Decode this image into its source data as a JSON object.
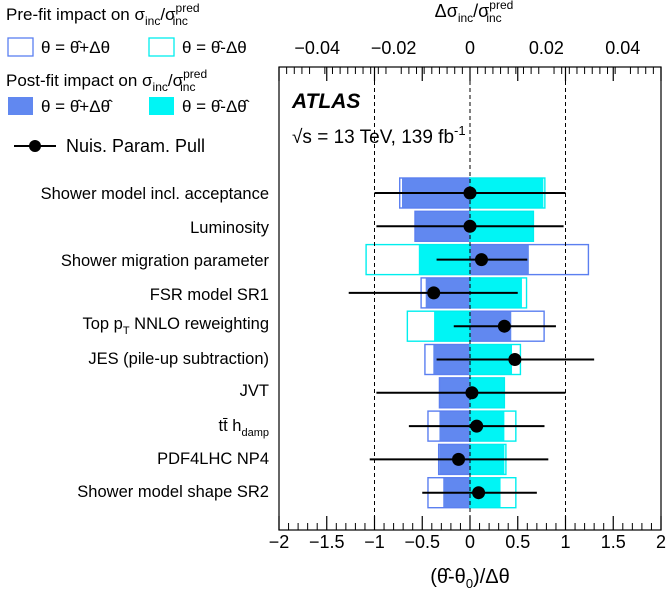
{
  "chart_data": {
    "type": "bar",
    "legend": {
      "prefit_title": "Pre-fit impact on σinc/σpredinc",
      "prefit_up": "θ = θ̂+Δθ",
      "prefit_down": "θ = θ̂-Δθ",
      "postfit_title": "Post-fit impact on σinc/σpredinc",
      "postfit_up": "θ = θ̂+Δθ̂",
      "postfit_down": "θ = θ̂-Δθ̂",
      "pull": "Nuis. Param. Pull",
      "placement": "top-left"
    },
    "annotation": {
      "experiment": "ATLAS",
      "energy": "√s = 13 TeV, 139 fb-1"
    },
    "top_axis": {
      "label": "Δσinc/σpredinc",
      "range": [
        -0.05,
        0.05
      ],
      "ticks": [
        -0.04,
        -0.02,
        0,
        0.02,
        0.04
      ],
      "tick_labels": [
        "−0.04",
        "−0.02",
        "0",
        "0.02",
        "0.04"
      ]
    },
    "bottom_axis": {
      "label": "(θ̂-θ0)/Δθ",
      "range": [
        -2,
        2
      ],
      "ticks": [
        -2,
        -1.5,
        -1,
        -0.5,
        0,
        0.5,
        1,
        1.5,
        2
      ],
      "tick_labels": [
        "−2",
        "−1.5",
        "−1",
        "−0.5",
        "0",
        "0.5",
        "1",
        "1.5",
        "2"
      ]
    },
    "reference_lines": [
      -1,
      0,
      1
    ],
    "colors": {
      "prefit_up": "#5b7ff0",
      "prefit_down": "#00eeee",
      "postfit_up": "#6188f0",
      "postfit_down": "#00f5f5",
      "pull": "#000000"
    },
    "categories": [
      "Shower model incl. acceptance",
      "Luminosity",
      "Shower migration parameter",
      "FSR model SR1",
      "Top pT NNLO reweighting",
      "JES (pile-up subtraction)",
      "JVT",
      "tt̄ hdamp",
      "PDF4LHC NP4",
      "Shower model shape SR2"
    ],
    "impacts": [
      {
        "prefit_up": -0.0184,
        "prefit_down": 0.0196,
        "postfit_up": -0.0178,
        "postfit_down": 0.0192
      },
      {
        "prefit_up": -0.0144,
        "prefit_down": 0.0166,
        "postfit_up": -0.0144,
        "postfit_down": 0.0166
      },
      {
        "prefit_up": 0.031,
        "prefit_down": -0.0272,
        "postfit_up": 0.0154,
        "postfit_down": -0.0134
      },
      {
        "prefit_up": -0.0128,
        "prefit_down": 0.0148,
        "postfit_up": -0.0116,
        "postfit_down": 0.0136
      },
      {
        "prefit_up": 0.0194,
        "prefit_down": -0.0164,
        "postfit_up": 0.0108,
        "postfit_down": -0.0094
      },
      {
        "prefit_up": -0.0118,
        "prefit_down": 0.0132,
        "postfit_up": -0.0096,
        "postfit_down": 0.011
      },
      {
        "prefit_up": -0.008,
        "prefit_down": 0.009,
        "postfit_up": -0.008,
        "postfit_down": 0.009
      },
      {
        "prefit_up": -0.011,
        "prefit_down": 0.012,
        "postfit_up": -0.008,
        "postfit_down": 0.009
      },
      {
        "prefit_up": -0.0082,
        "prefit_down": 0.0094,
        "postfit_up": -0.008,
        "postfit_down": 0.009
      },
      {
        "prefit_up": -0.011,
        "prefit_down": 0.012,
        "postfit_up": -0.007,
        "postfit_down": 0.008
      }
    ],
    "pulls": [
      {
        "value": 0.0,
        "err_low": -1.0,
        "err_high": 1.0
      },
      {
        "value": 0.0,
        "err_low": -0.98,
        "err_high": 0.98
      },
      {
        "value": 0.12,
        "err_low": -0.35,
        "err_high": 0.6
      },
      {
        "value": -0.38,
        "err_low": -1.27,
        "err_high": 0.5
      },
      {
        "value": 0.36,
        "err_low": -0.17,
        "err_high": 0.9
      },
      {
        "value": 0.47,
        "err_low": -0.35,
        "err_high": 1.3
      },
      {
        "value": 0.02,
        "err_low": -0.98,
        "err_high": 1.0
      },
      {
        "value": 0.07,
        "err_low": -0.64,
        "err_high": 0.78
      },
      {
        "value": -0.12,
        "err_low": -1.05,
        "err_high": 0.82
      },
      {
        "value": 0.09,
        "err_low": -0.5,
        "err_high": 0.7
      }
    ]
  }
}
